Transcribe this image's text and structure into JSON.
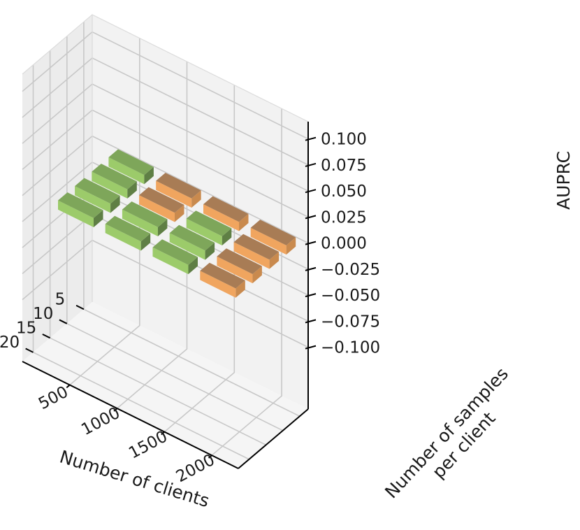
{
  "chart_data": {
    "type": "bar3d",
    "xlabel": "Number of clients",
    "ylabel": "Number of samples\nper client",
    "zlabel": "AUPRC",
    "x_ticks": [
      "5",
      "10",
      "15",
      "20"
    ],
    "y_ticks": [
      "500",
      "1000",
      "1500",
      "2000"
    ],
    "z_ticks": [
      "−0.100",
      "−0.075",
      "−0.050",
      "−0.025",
      "0.000",
      "0.025",
      "0.050",
      "0.075",
      "0.100"
    ],
    "zlim": [
      -0.1,
      0.1
    ],
    "grid": true,
    "colors": {
      "orange_top": "#a87c55",
      "orange_side": "#f0a55f",
      "green_top": "#7ea65a",
      "green_side": "#9ccb6a",
      "green_dark": "#5f7f45",
      "pane": "#f2f2f2",
      "grid": "#c8c8c8"
    },
    "bars": [
      {
        "clients": 5,
        "samples": 2000,
        "color": "orange"
      },
      {
        "clients": 10,
        "samples": 2000,
        "color": "orange"
      },
      {
        "clients": 15,
        "samples": 2000,
        "color": "orange"
      },
      {
        "clients": 20,
        "samples": 2000,
        "color": "orange"
      },
      {
        "clients": 5,
        "samples": 1500,
        "color": "orange"
      },
      {
        "clients": 10,
        "samples": 1500,
        "color": "green"
      },
      {
        "clients": 15,
        "samples": 1500,
        "color": "green"
      },
      {
        "clients": 20,
        "samples": 1500,
        "color": "green"
      },
      {
        "clients": 5,
        "samples": 1000,
        "color": "orange"
      },
      {
        "clients": 10,
        "samples": 1000,
        "color": "orange"
      },
      {
        "clients": 15,
        "samples": 1000,
        "color": "green"
      },
      {
        "clients": 20,
        "samples": 1000,
        "color": "green"
      },
      {
        "clients": 5,
        "samples": 500,
        "color": "green"
      },
      {
        "clients": 10,
        "samples": 500,
        "color": "green"
      },
      {
        "clients": 15,
        "samples": 500,
        "color": "green"
      },
      {
        "clients": 20,
        "samples": 500,
        "color": "green"
      }
    ]
  }
}
